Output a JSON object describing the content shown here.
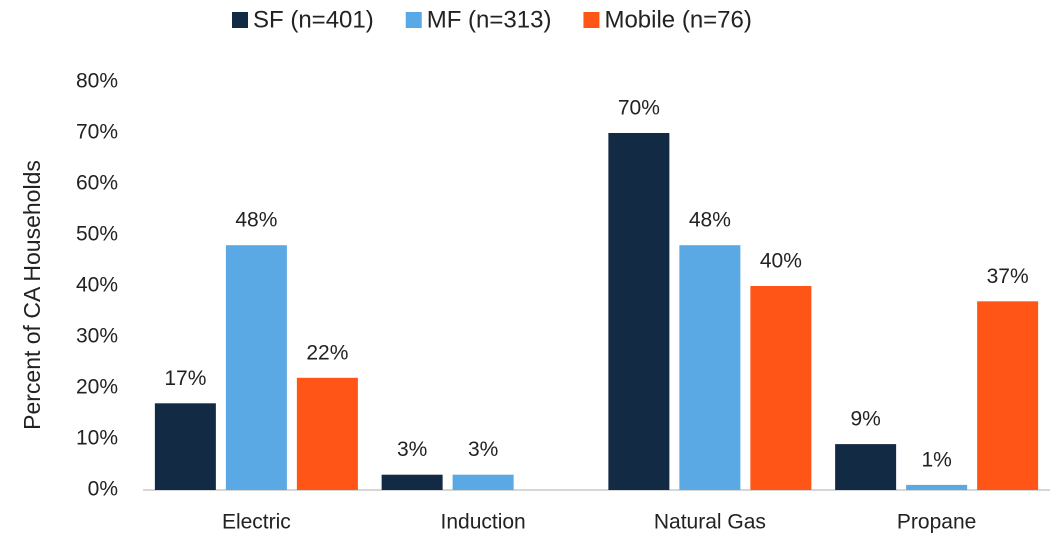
{
  "chart_data": {
    "type": "bar",
    "y_label": "Percent of CA Households",
    "categories": [
      "Electric",
      "Induction",
      "Natural Gas",
      "Propane"
    ],
    "series": [
      {
        "name": "SF (n=401)",
        "color": "#132a45",
        "values": [
          17,
          3,
          70,
          9
        ],
        "value_labels": [
          "17%",
          "3%",
          "70%",
          "9%"
        ]
      },
      {
        "name": "MF (n=313)",
        "color": "#5aa8e4",
        "values": [
          48,
          3,
          48,
          1
        ],
        "value_labels": [
          "48%",
          "3%",
          "48%",
          "1%"
        ]
      },
      {
        "name": "Mobile (n=76)",
        "color": "#ff5517",
        "values": [
          22,
          null,
          40,
          37
        ],
        "value_labels": [
          "22%",
          null,
          "40%",
          "37%"
        ]
      }
    ],
    "ylim": [
      0,
      80
    ],
    "yticks": [
      {
        "value": 0,
        "label": "0%"
      },
      {
        "value": 10,
        "label": "10%"
      },
      {
        "value": 20,
        "label": "20%"
      },
      {
        "value": 30,
        "label": "30%"
      },
      {
        "value": 40,
        "label": "40%"
      },
      {
        "value": 50,
        "label": "50%"
      },
      {
        "value": 60,
        "label": "60%"
      },
      {
        "value": 70,
        "label": "70%"
      },
      {
        "value": 80,
        "label": "80%"
      }
    ],
    "legend": "top",
    "grid": false
  }
}
